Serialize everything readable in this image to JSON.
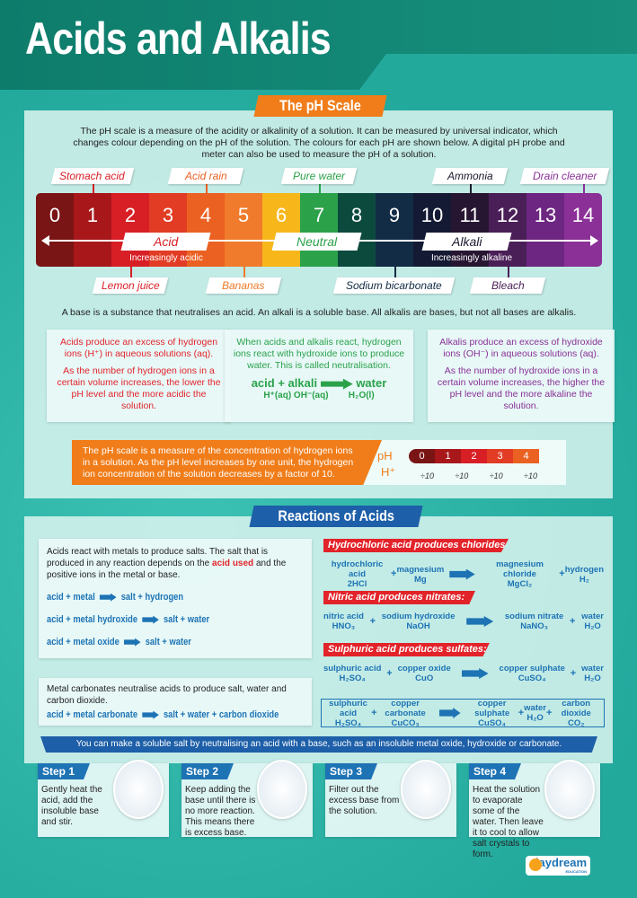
{
  "title": "Acids and Alkalis",
  "ph_section": {
    "heading": "The pH Scale",
    "intro": "The pH scale is a measure of the acidity or alkalinity of a solution. It can be measured by universal indicator, which changes colour depending on the pH of the solution. The colours for each pH are shown below. A digital pH probe and meter can also be used to measure the pH of a solution.",
    "scale": [
      {
        "v": "0",
        "c": "#7a1515"
      },
      {
        "v": "1",
        "c": "#a8171a"
      },
      {
        "v": "2",
        "c": "#d81f26"
      },
      {
        "v": "3",
        "c": "#e23c24"
      },
      {
        "v": "4",
        "c": "#eb6122"
      },
      {
        "v": "5",
        "c": "#f07b2c"
      },
      {
        "v": "6",
        "c": "#f7b71b"
      },
      {
        "v": "7",
        "c": "#2ba24a"
      },
      {
        "v": "8",
        "c": "#0c4a3e"
      },
      {
        "v": "9",
        "c": "#132c46"
      },
      {
        "v": "10",
        "c": "#141a33"
      },
      {
        "v": "11",
        "c": "#271632"
      },
      {
        "v": "12",
        "c": "#4a1f57"
      },
      {
        "v": "13",
        "c": "#6d2681"
      },
      {
        "v": "14",
        "c": "#8a3096"
      }
    ],
    "top_labels": [
      {
        "text": "Stomach acid",
        "ph": 1,
        "color": "#d81f26"
      },
      {
        "text": "Acid rain",
        "ph": 4,
        "color": "#eb6122"
      },
      {
        "text": "Pure water",
        "ph": 7,
        "color": "#2ba24a"
      },
      {
        "text": "Ammonia",
        "ph": 11,
        "color": "#1a1a2e"
      },
      {
        "text": "Drain cleaner",
        "ph": 14,
        "color": "#8a3096"
      }
    ],
    "bottom_labels": [
      {
        "text": "Lemon juice",
        "ph": 2,
        "color": "#d81f26"
      },
      {
        "text": "Bananas",
        "ph": 5,
        "color": "#f07b2c"
      },
      {
        "text": "Sodium bicarbonate",
        "ph": 9,
        "color": "#132c46"
      },
      {
        "text": "Bleach",
        "ph": 12,
        "color": "#4a1f57"
      }
    ],
    "acid": "Acid",
    "acid_sub": "Increasingly acidic",
    "neutral": "Neutral",
    "alkali": "Alkali",
    "alkali_sub": "Increasingly alkaline",
    "base_note": "A base is a substance that neutralises an acid. An alkali is a soluble base. All alkalis are bases, but not all bases are alkalis.",
    "acid_box": [
      "Acids produce an excess of hydrogen ions (H⁺) in aqueous solutions (aq).",
      "As the number of hydrogen ions in a certain volume increases, the lower the pH level and the more acidic the solution."
    ],
    "neutral_box": "When acids and alkalis react, hydrogen ions react with hydroxide ions to produce water. This is called neutralisation.",
    "neutral_eq": {
      "lhs": "acid + alkali",
      "rhs": "water",
      "lhs_f": "H⁺(aq)   OH⁻(aq)",
      "rhs_f": "H₂O(l)"
    },
    "alkali_box": [
      "Alkalis produce an excess of hydroxide ions (OH⁻) in aqueous solutions (aq).",
      "As the number of hydroxide ions in a certain volume increases, the higher the pH level and the more alkaline the solution."
    ],
    "concentration": "The pH scale is a measure of the concentration of hydrogen ions in a solution. As the pH level increases by one unit, the hydrogen ion concentration of the solution decreases by a factor of 10.",
    "mini_ph": "pH",
    "mini_h": "H⁺",
    "mini_steps": [
      "0",
      "1",
      "2",
      "3",
      "4"
    ],
    "factor": "÷10"
  },
  "reactions": {
    "heading": "Reactions of Acids",
    "metals_intro_a": "Acids react with metals to produce salts. The salt that is produced in any reaction depends on the ",
    "metals_intro_hl": "acid used",
    "metals_intro_b": " and the positive ions in the metal or base.",
    "word_eqs": [
      {
        "l": "acid + metal",
        "r": "salt + hydrogen"
      },
      {
        "l": "acid + metal hydroxide",
        "r": "salt + water"
      },
      {
        "l": "acid + metal oxide",
        "r": "salt + water"
      }
    ],
    "carbonate_intro": "Metal carbonates neutralise acids to produce salt, water and carbon dioxide.",
    "carbonate_eq": {
      "l": "acid + metal carbonate",
      "r": "salt + water + carbon dioxide"
    },
    "examples": [
      {
        "head": "Hydrochloric acid produces chlorides:",
        "terms": [
          [
            "hydrochloric acid",
            "2HCl"
          ],
          [
            "magnesium",
            "Mg"
          ],
          [
            "magnesium chloride",
            "MgCl₂"
          ],
          [
            "hydrogen",
            "H₂"
          ]
        ]
      },
      {
        "head": "Nitric acid produces nitrates:",
        "terms": [
          [
            "nitric acid",
            "HNO₃"
          ],
          [
            "sodium hydroxide",
            "NaOH"
          ],
          [
            "sodium nitrate",
            "NaNO₃"
          ],
          [
            "water",
            "H₂O"
          ]
        ]
      },
      {
        "head": "Sulphuric acid produces sulfates:",
        "terms": [
          [
            "sulphuric acid",
            "H₂SO₄"
          ],
          [
            "copper oxide",
            "CuO"
          ],
          [
            "copper sulphate",
            "CuSO₄"
          ],
          [
            "water",
            "H₂O"
          ]
        ]
      }
    ],
    "carbonate_example": [
      [
        "sulphuric acid",
        "H₂SO₄"
      ],
      [
        "copper carbonate",
        "CuCO₃"
      ],
      [
        "copper sulphate",
        "CuSO₄"
      ],
      [
        "water",
        "H₂O"
      ],
      [
        "carbon dioxide",
        "CO₂"
      ]
    ],
    "banner": "You can make a soluble salt by neutralising an acid with a base, such as an insoluble metal oxide, hydroxide or carbonate.",
    "steps": [
      {
        "t": "Step 1",
        "d": "Gently heat the acid, add the insoluble base and stir."
      },
      {
        "t": "Step 2",
        "d": "Keep adding the base until there is no more reaction. This means there is excess base."
      },
      {
        "t": "Step 3",
        "d": "Filter out the excess base from the solution."
      },
      {
        "t": "Step 4",
        "d": "Heat the solution to evaporate some of the water. Then leave it to cool to allow salt crystals to form."
      }
    ]
  },
  "logo": "daydream",
  "logo_sub": "EDUCATION"
}
